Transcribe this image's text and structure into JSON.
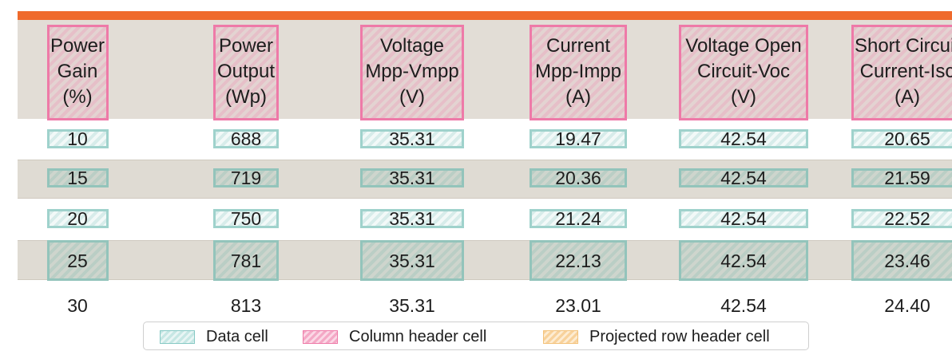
{
  "table": {
    "headers": [
      "Power\nGain\n(%)",
      "Power\nOutput\n(Wp)",
      "Voltage\nMpp-Vmpp\n(V)",
      "Current\nMpp-Impp\n(A)",
      "Voltage Open\nCircuit-Voc\n(V)",
      "Short Circuit\nCurrent-Isc\n(A)"
    ],
    "rows": [
      [
        "10",
        "688",
        "35.31",
        "19.47",
        "42.54",
        "20.65"
      ],
      [
        "15",
        "719",
        "35.31",
        "20.36",
        "42.54",
        "21.59"
      ],
      [
        "20",
        "750",
        "35.31",
        "21.24",
        "42.54",
        "22.52"
      ],
      [
        "25",
        "781",
        "35.31",
        "22.13",
        "42.54",
        "23.46"
      ],
      [
        "30",
        "813",
        "35.31",
        "23.01",
        "42.54",
        "24.40"
      ]
    ]
  },
  "legend": {
    "items": [
      {
        "label": "Data cell",
        "color": "#86c9c4"
      },
      {
        "label": "Column header cell",
        "color": "#ee7aa8"
      },
      {
        "label": "Projected row header cell",
        "color": "#f3c27a"
      }
    ]
  },
  "colors": {
    "accent_bar": "#ef6a2c",
    "header_background": "#e2ddd6",
    "stripe_background": "#dfdbd3"
  }
}
